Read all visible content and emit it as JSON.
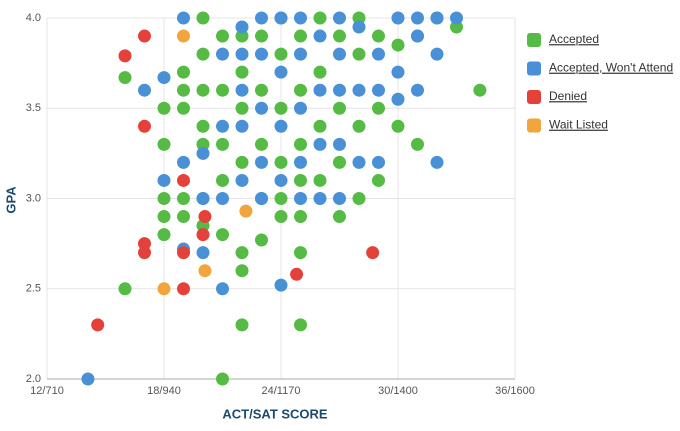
{
  "chart_data": {
    "type": "scatter",
    "x_label": "ACT/SAT SCORE",
    "y_label": "GPA",
    "xlim": [
      12,
      36
    ],
    "ylim": [
      2,
      4
    ],
    "xticks": [
      {
        "value": 12,
        "label": "12/710"
      },
      {
        "value": 18,
        "label": "18/940"
      },
      {
        "value": 24,
        "label": "24/1170"
      },
      {
        "value": 30,
        "label": "30/1400"
      },
      {
        "value": 36,
        "label": "36/1600"
      }
    ],
    "yticks": [
      {
        "value": 2,
        "label": "2.0"
      },
      2.5,
      {
        "value": 3,
        "label": "3.0"
      },
      3.5,
      {
        "value": 4,
        "label": "4.0"
      }
    ],
    "grid": true,
    "legend": "right",
    "series": [
      {
        "name": "Accepted",
        "color": "#55bb44",
        "x": [
          16,
          16,
          18,
          18,
          18,
          18,
          18,
          19,
          19,
          19,
          19,
          19,
          20,
          20,
          20,
          20,
          20,
          20,
          20,
          21,
          21,
          21,
          21,
          21,
          21,
          22,
          22,
          22,
          22,
          22,
          22,
          22,
          23,
          23,
          23,
          23,
          23,
          24,
          24,
          24,
          24,
          24,
          24,
          25,
          25,
          25,
          25,
          25,
          25,
          25,
          26,
          26,
          26,
          26,
          27,
          27,
          27,
          27,
          28,
          28,
          28,
          28,
          29,
          29,
          29,
          30,
          30,
          31,
          31,
          32,
          33,
          34.2
        ],
        "values": [
          3.67,
          2.5,
          3.5,
          3.3,
          3.0,
          2.9,
          2.8,
          3.7,
          3.6,
          3.5,
          3.0,
          2.9,
          4.0,
          3.8,
          3.6,
          3.4,
          3.3,
          3.0,
          2.85,
          3.9,
          3.6,
          3.3,
          3.1,
          2.8,
          2.0,
          3.9,
          3.7,
          3.5,
          3.2,
          2.7,
          2.6,
          2.3,
          3.9,
          3.6,
          3.3,
          3.0,
          2.77,
          4.0,
          3.8,
          3.5,
          3.2,
          3.0,
          2.9,
          3.9,
          3.6,
          3.3,
          3.1,
          2.9,
          2.7,
          2.3,
          4.0,
          3.7,
          3.4,
          3.1,
          3.9,
          3.5,
          3.2,
          2.9,
          4.0,
          3.8,
          3.4,
          3.0,
          3.9,
          3.5,
          3.1,
          3.85,
          3.4,
          3.9,
          3.3,
          4.0,
          3.95,
          3.6
        ]
      },
      {
        "name": "Accepted, Won't Attend",
        "color": "#4a90d6",
        "x": [
          14.1,
          17,
          18,
          18,
          19,
          19,
          19,
          20,
          20,
          20,
          21,
          21,
          21,
          21,
          22,
          22,
          22,
          22,
          22,
          23,
          23,
          23,
          23,
          23,
          24,
          24,
          24,
          24,
          24,
          25,
          25,
          25,
          25,
          25,
          26,
          26,
          26,
          26,
          27,
          27,
          27,
          27,
          27,
          28,
          28,
          28,
          29,
          29,
          29,
          30,
          30,
          30,
          31,
          31,
          31,
          32,
          32,
          32,
          33
        ],
        "values": [
          2.0,
          3.6,
          3.67,
          3.1,
          4.0,
          3.2,
          2.72,
          3.25,
          3.0,
          2.7,
          3.8,
          3.4,
          3.0,
          2.5,
          3.95,
          3.8,
          3.6,
          3.4,
          3.1,
          4.0,
          3.8,
          3.5,
          3.2,
          3.0,
          4.0,
          3.7,
          3.4,
          3.1,
          2.52,
          4.0,
          3.8,
          3.5,
          3.2,
          3.0,
          3.9,
          3.6,
          3.3,
          3.0,
          4.0,
          3.8,
          3.6,
          3.3,
          3.0,
          3.95,
          3.6,
          3.2,
          3.8,
          3.6,
          3.2,
          4.0,
          3.55,
          3.7,
          4.0,
          3.9,
          3.6,
          4.0,
          3.8,
          3.2,
          4.0
        ]
      },
      {
        "name": "Denied",
        "color": "#e5413b",
        "x": [
          16,
          17,
          17,
          17,
          17,
          14.6,
          19,
          19,
          19,
          20.1,
          20,
          24.8,
          28.7
        ],
        "values": [
          3.79,
          3.9,
          3.4,
          2.75,
          2.7,
          2.3,
          3.1,
          2.5,
          2.7,
          2.9,
          2.8,
          2.58,
          2.7
        ]
      },
      {
        "name": "Wait Listed",
        "color": "#f2a53a",
        "x": [
          19,
          18,
          20.1,
          22.2
        ],
        "values": [
          3.9,
          2.5,
          2.6,
          2.93
        ]
      }
    ]
  }
}
